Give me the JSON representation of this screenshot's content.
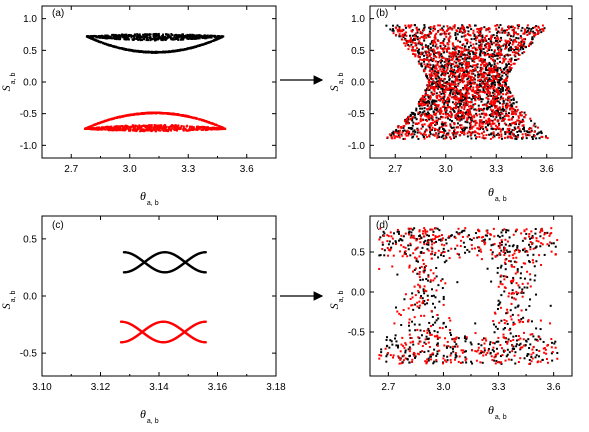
{
  "chart_data": [
    {
      "id": "a",
      "type": "scatter",
      "panel_label": "(a)",
      "xlabel": {
        "main": "θ",
        "sub": "a, b"
      },
      "ylabel": {
        "main": "S",
        "sub": "a, b"
      },
      "xlim": [
        2.55,
        3.75
      ],
      "ylim": [
        -1.2,
        1.2
      ],
      "xticks": [
        2.7,
        3.0,
        3.3,
        3.6
      ],
      "xtick_labels": [
        "2.7",
        "3.0",
        "3.3",
        "3.6"
      ],
      "yticks": [
        -1.0,
        -0.5,
        0.0,
        0.5,
        1.0
      ],
      "ytick_labels": [
        "-1.0",
        "-0.5",
        "0.0",
        "0.5",
        "1.0"
      ],
      "series": [
        {
          "color": "#000000",
          "pattern": "crescent",
          "center_x": 3.13,
          "center_y": 0.5,
          "half_width": 0.35,
          "outer": 0.3,
          "inner": 0.07,
          "sign": 1,
          "count": 1100
        },
        {
          "color": "#ff0000",
          "pattern": "crescent",
          "center_x": 3.13,
          "center_y": -0.52,
          "half_width": 0.36,
          "outer": 0.3,
          "inner": 0.07,
          "sign": -1,
          "count": 1100
        }
      ]
    },
    {
      "id": "b",
      "type": "scatter",
      "panel_label": "(b)",
      "xlabel": {
        "main": "θ",
        "sub": "a, b"
      },
      "ylabel": {
        "main": "S",
        "sub": "a, b"
      },
      "xlim": [
        2.55,
        3.75
      ],
      "ylim": [
        -1.2,
        1.2
      ],
      "xticks": [
        2.7,
        3.0,
        3.3,
        3.6
      ],
      "xtick_labels": [
        "2.7",
        "3.0",
        "3.3",
        "3.6"
      ],
      "yticks": [
        -1.0,
        -0.5,
        0.0,
        0.5,
        1.0
      ],
      "ytick_labels": [
        "-1.0",
        "-0.5",
        "0.0",
        "0.5",
        "1.0"
      ],
      "series": [
        {
          "color": "#000000",
          "pattern": "hourglass",
          "x_min": 2.64,
          "x_max": 3.62,
          "y_min": -0.9,
          "y_max": 0.9,
          "waist": 0.48,
          "count": 1400
        },
        {
          "color": "#ff0000",
          "pattern": "hourglass",
          "x_min": 2.64,
          "x_max": 3.62,
          "y_min": -0.9,
          "y_max": 0.9,
          "waist": 0.48,
          "count": 1400
        }
      ]
    },
    {
      "id": "c",
      "type": "scatter",
      "panel_label": "(c)",
      "xlabel": {
        "main": "θ",
        "sub": "a, b"
      },
      "ylabel": {
        "main": "S",
        "sub": "a, b"
      },
      "xlim": [
        3.1,
        3.18
      ],
      "ylim": [
        -0.7,
        0.7
      ],
      "xticks": [
        3.1,
        3.12,
        3.14,
        3.16,
        3.18
      ],
      "xtick_labels": [
        "3.10",
        "3.12",
        "3.14",
        "3.16",
        "3.18"
      ],
      "yticks": [
        -0.5,
        0.0,
        0.5
      ],
      "ytick_labels": [
        "-0.5",
        "0.0",
        "0.5"
      ],
      "series": [
        {
          "color": "#000000",
          "pattern": "bowtie",
          "x_min": 3.128,
          "x_max": 3.156,
          "y_center": 0.295,
          "half_height": 0.088,
          "count": 160
        },
        {
          "color": "#ff0000",
          "pattern": "bowtie",
          "x_min": 3.127,
          "x_max": 3.156,
          "y_center": -0.315,
          "half_height": 0.09,
          "count": 160
        }
      ]
    },
    {
      "id": "d",
      "type": "scatter",
      "panel_label": "(d)",
      "xlabel": {
        "main": "θ",
        "sub": "a, b"
      },
      "ylabel": {
        "main": "S",
        "sub": "a, b"
      },
      "xlim": [
        2.6,
        3.7
      ],
      "ylim": [
        -1.05,
        0.95
      ],
      "xticks": [
        2.7,
        3.0,
        3.3,
        3.6
      ],
      "xtick_labels": [
        "2.7",
        "3.0",
        "3.3",
        "3.6"
      ],
      "yticks": [
        -0.5,
        0.0,
        0.5
      ],
      "ytick_labels": [
        "-0.5",
        "0.0",
        "0.5"
      ],
      "series": [
        {
          "color": "#000000",
          "pattern": "sparse-hourglass",
          "x_min": 2.65,
          "x_max": 3.62,
          "y_min": -0.9,
          "y_max": 0.8,
          "clusters": [
            2.9,
            3.38
          ],
          "count": 520
        },
        {
          "color": "#ff0000",
          "pattern": "sparse-hourglass",
          "x_min": 2.65,
          "x_max": 3.62,
          "y_min": -0.9,
          "y_max": 0.8,
          "clusters": [
            2.9,
            3.38
          ],
          "count": 520
        }
      ]
    }
  ],
  "arrows": [
    {
      "from": "a",
      "to": "b",
      "icon": "right-arrow-icon"
    },
    {
      "from": "c",
      "to": "d",
      "icon": "right-arrow-icon"
    }
  ]
}
